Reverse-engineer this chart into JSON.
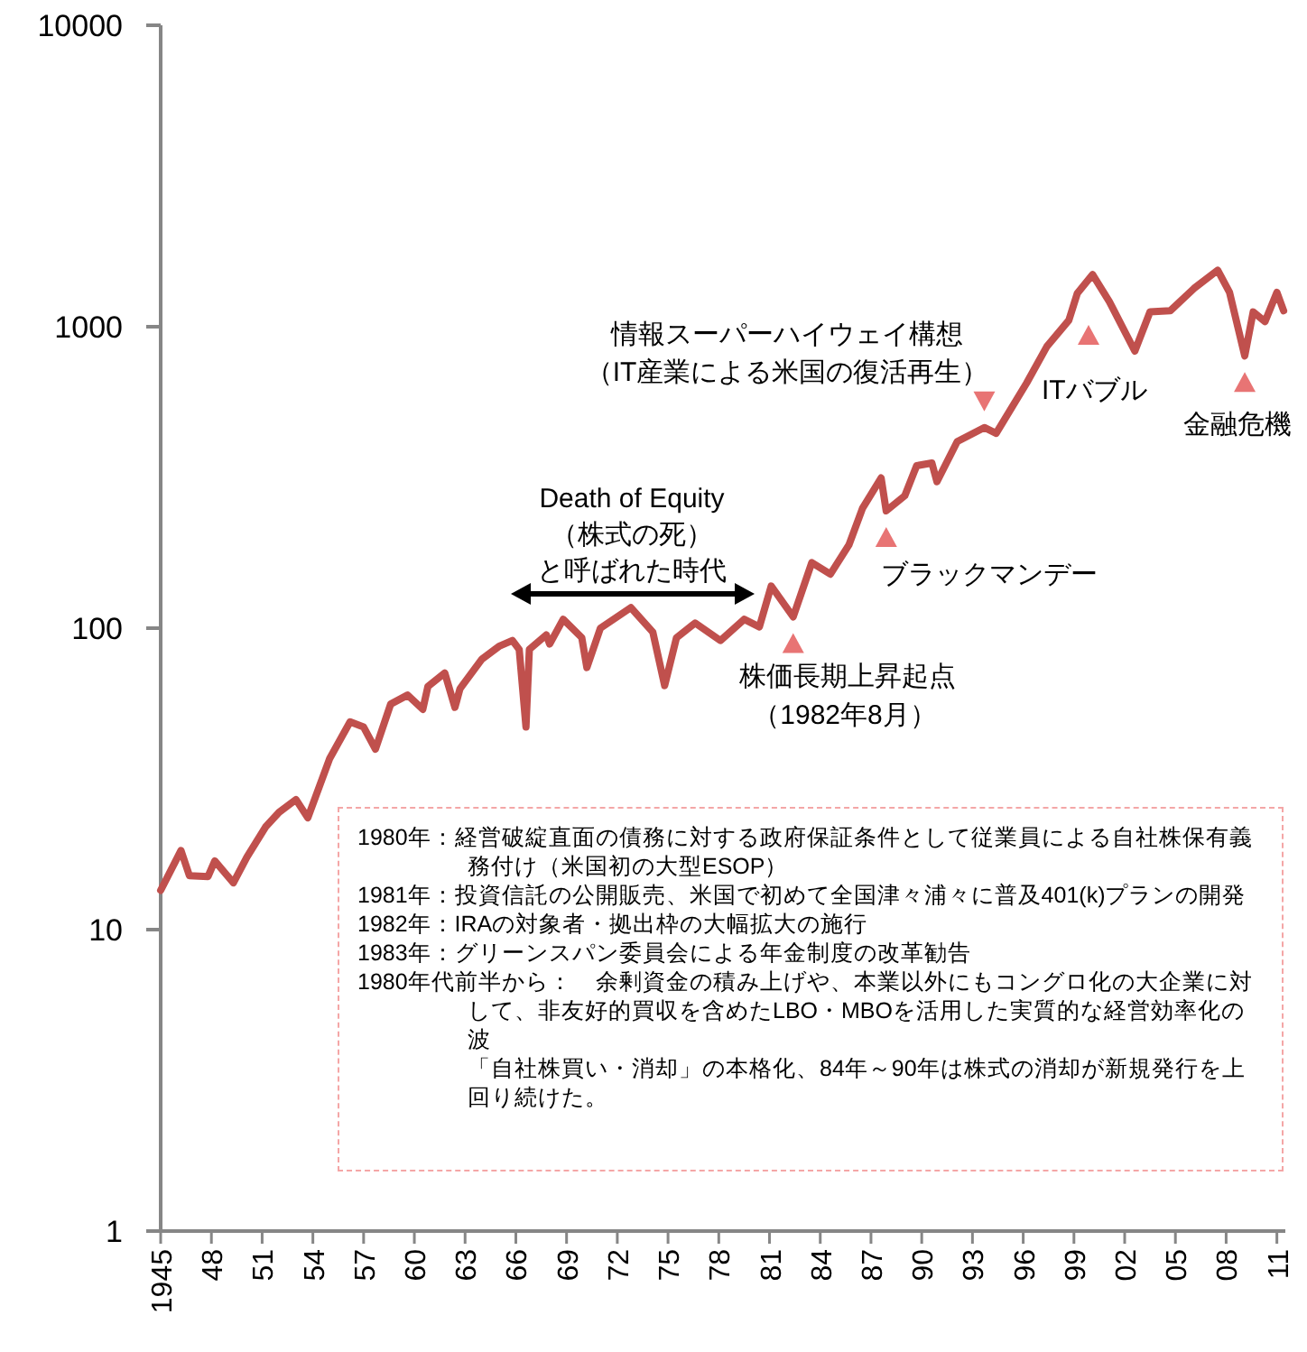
{
  "chart_data": {
    "type": "line",
    "log": "y",
    "x": [
      1945,
      1946.2,
      1946.7,
      1947.8,
      1948.2,
      1949.3,
      1950.1,
      1951.2,
      1952,
      1953,
      1953.7,
      1955,
      1956.2,
      1957,
      1957.7,
      1958.6,
      1959.6,
      1960.5,
      1960.8,
      1961.8,
      1962.4,
      1962.7,
      1964,
      1965,
      1965.8,
      1966.2,
      1966.6,
      1966.8,
      1967.8,
      1968,
      1968.8,
      1969.9,
      1970.2,
      1971,
      1972.8,
      1974.1,
      1974.8,
      1975.5,
      1976.6,
      1978.1,
      1979.5,
      1980.4,
      1981.1,
      1982.4,
      1983.5,
      1984.6,
      1985.7,
      1986.5,
      1987.6,
      1987.9,
      1989,
      1989.7,
      1990.6,
      1990.9,
      1992.1,
      1993.7,
      1994.4,
      1996.2,
      1997.4,
      1998.7,
      1999.2,
      2000.1,
      2001.1,
      2002.6,
      2003.5,
      2004.7,
      2006.1,
      2007.5,
      2008.2,
      2009.1,
      2009.6,
      2010.3,
      2011.0,
      2011.4
    ],
    "series": [
      {
        "color": "#c0504d",
        "values": [
          13.5,
          18.3,
          15.1,
          15,
          16.9,
          14.3,
          17.4,
          21.9,
          24.5,
          27,
          23.5,
          37,
          48.9,
          47,
          39.7,
          56,
          60,
          53.8,
          64,
          71,
          54.6,
          63,
          79,
          87,
          91,
          85,
          47,
          85,
          95,
          88.6,
          107,
          93,
          74,
          100,
          117,
          97,
          64.5,
          93,
          104,
          91,
          107,
          101,
          138,
          109,
          165,
          151,
          189,
          250,
          315,
          245,
          275,
          346,
          353,
          306,
          416,
          463,
          443,
          650,
          860,
          1050,
          1290,
          1490,
          1210,
          830,
          1120,
          1130,
          1340,
          1540,
          1300,
          800,
          1120,
          1040,
          1300,
          1130
        ]
      }
    ],
    "xlim": [
      1945,
      2011.5
    ],
    "xticks": [
      1945,
      {
        "value": 1948,
        "label": "48"
      },
      {
        "value": 1951,
        "label": "51"
      },
      {
        "value": 1954,
        "label": "54"
      },
      {
        "value": 1957,
        "label": "57"
      },
      {
        "value": 1960,
        "label": "60"
      },
      {
        "value": 1963,
        "label": "63"
      },
      {
        "value": 1966,
        "label": "66"
      },
      {
        "value": 1969,
        "label": "69"
      },
      {
        "value": 1972,
        "label": "72"
      },
      {
        "value": 1975,
        "label": "75"
      },
      {
        "value": 1978,
        "label": "78"
      },
      {
        "value": 1981,
        "label": "81"
      },
      {
        "value": 1984,
        "label": "84"
      },
      {
        "value": 1987,
        "label": "87"
      },
      {
        "value": 1990,
        "label": "90"
      },
      {
        "value": 1993,
        "label": "93"
      },
      {
        "value": 1996,
        "label": "96"
      },
      {
        "value": 1999,
        "label": "99"
      },
      {
        "value": 2002,
        "label": "02"
      },
      {
        "value": 2005,
        "label": "05"
      },
      {
        "value": 2008,
        "label": "08"
      },
      {
        "value": 2011,
        "label": "11"
      }
    ],
    "ylim": [
      1,
      10000
    ],
    "yticks": [
      1,
      10,
      100,
      1000,
      10000
    ],
    "grid": false,
    "annotations": [
      "Death of Equity",
      "（株式の死）",
      "と呼ばれた時代",
      {
        "text": "株価長期上昇起点",
        "x": 1982.4,
        "y": 109
      },
      "（1982年8月）",
      {
        "text": "ブラックマンデー",
        "x": 1987.9,
        "y": 245
      },
      {
        "text": "情報スーパーハイウェイ構想",
        "x": 1993.7,
        "y": 463
      },
      "（IT産業による米国の復活再生）",
      "ITバブル",
      {
        "text": "金融危機",
        "x": 2009.1,
        "y": 800
      },
      "1980年：経営破綻直面の債務に対する政府保証条件として従業員による自社株保有義務付け（米国初の大型ESOP）",
      "1981年：投資信託の公開販売、米国で初めて全国津々浦々に普及401(k)プランの開発",
      "1982年：IRAの対象者・拠出枠の大幅拡大の施行",
      "1983年：グリーンスパン委員会による年金制度の改革勧告",
      "1980年代前半から：　余剰資金の積み上げや、本業以外にもコングロ化の大企業に対して、非友好的買収を含めたLBO・MBOを活用した実質的な経営効率化の波",
      "「自社株買い・消却」の本格化、84年～90年は株式の消却が新規発行を上回り続けた。"
    ]
  }
}
